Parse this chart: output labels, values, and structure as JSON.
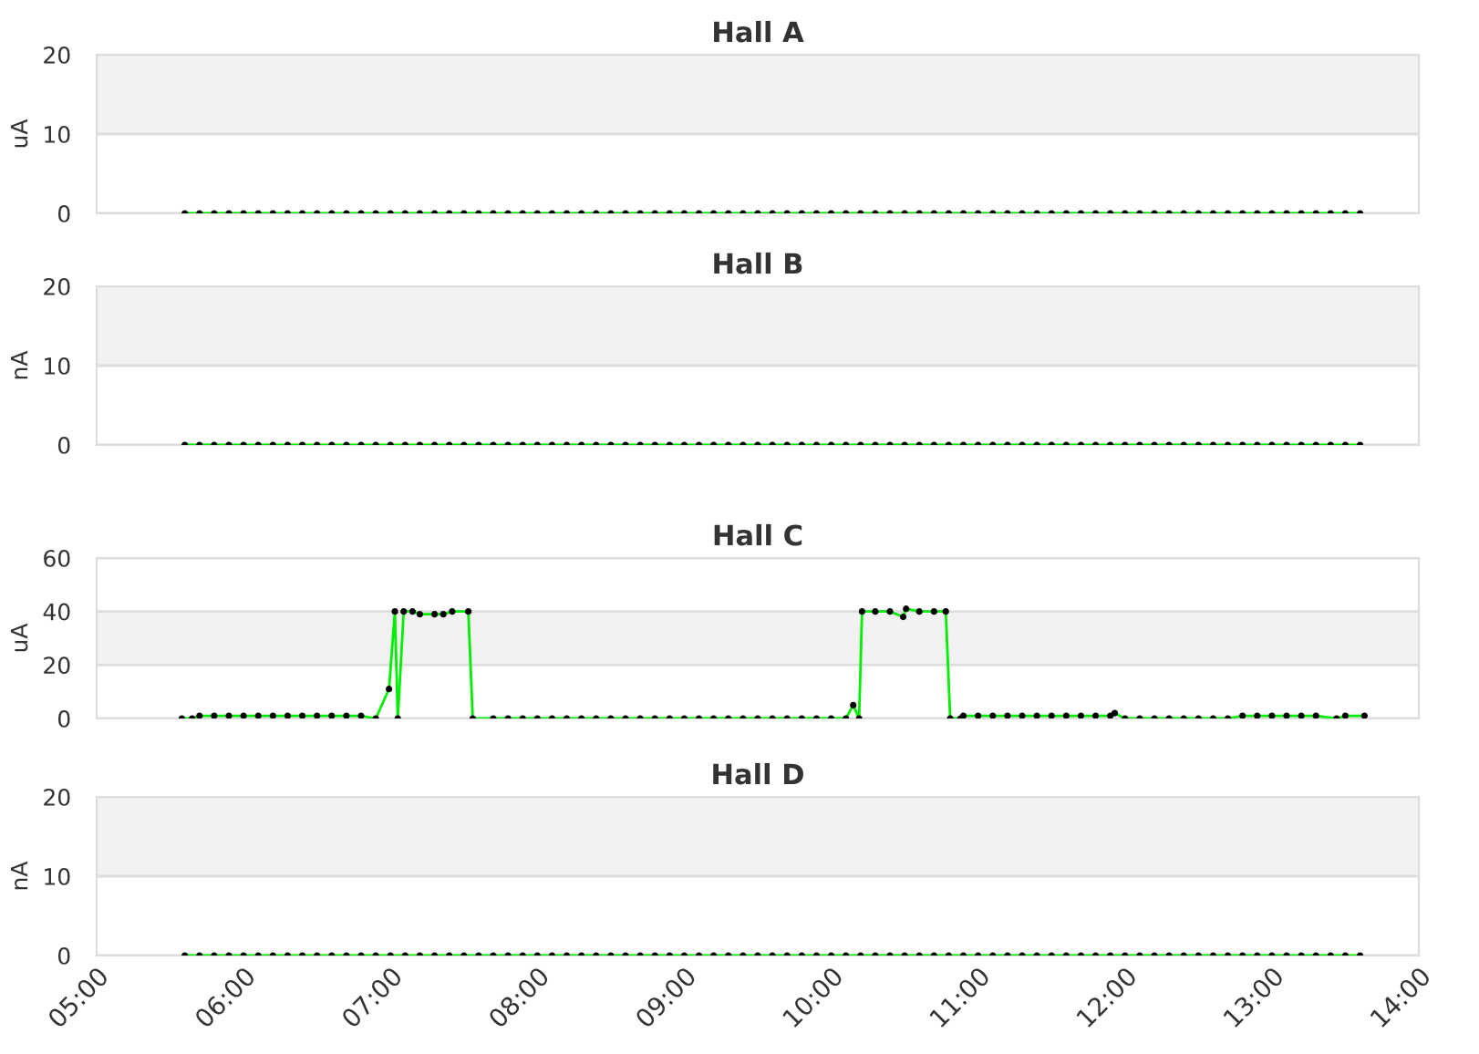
{
  "chart_data": [
    {
      "type": "line",
      "title": "Hall A",
      "ylabel": "uA",
      "xlim": [
        5,
        14
      ],
      "ylim": [
        0,
        20
      ],
      "yticks": [
        0,
        10,
        20
      ],
      "tick_labels": "y",
      "grid": "y",
      "legend": false,
      "marker": "circle",
      "line_style": "solid",
      "bands": [
        {
          "axis": "y",
          "from": 10,
          "to": 20,
          "color": "#f2f2f2"
        }
      ],
      "series": [
        {
          "color": "#00ee00",
          "x": [
            5.6,
            5.7,
            5.8,
            5.9,
            6.0,
            6.1,
            6.2,
            6.3,
            6.4,
            6.5,
            6.6,
            6.7,
            6.8,
            6.9,
            7.0,
            7.1,
            7.2,
            7.3,
            7.4,
            7.5,
            7.6,
            7.7,
            7.8,
            7.9,
            8.0,
            8.1,
            8.2,
            8.3,
            8.4,
            8.5,
            8.6,
            8.7,
            8.8,
            8.9,
            9.0,
            9.1,
            9.2,
            9.3,
            9.4,
            9.5,
            9.6,
            9.7,
            9.8,
            9.9,
            10.0,
            10.1,
            10.2,
            10.3,
            10.4,
            10.5,
            10.6,
            10.7,
            10.8,
            10.9,
            11.0,
            11.1,
            11.2,
            11.3,
            11.4,
            11.5,
            11.6,
            11.7,
            11.8,
            11.9,
            12.0,
            12.1,
            12.2,
            12.3,
            12.4,
            12.5,
            12.6,
            12.7,
            12.8,
            12.9,
            13.0,
            13.1,
            13.2,
            13.3,
            13.4,
            13.5,
            13.6
          ],
          "values": [
            0,
            0,
            0,
            0,
            0,
            0,
            0,
            0,
            0,
            0,
            0,
            0,
            0,
            0,
            0,
            0,
            0,
            0,
            0,
            0,
            0,
            0,
            0,
            0,
            0,
            0,
            0,
            0,
            0,
            0,
            0,
            0,
            0,
            0,
            0,
            0,
            0,
            0,
            0,
            0,
            0,
            0,
            0,
            0,
            0,
            0,
            0,
            0,
            0,
            0,
            0,
            0,
            0,
            0,
            0,
            0,
            0,
            0,
            0,
            0,
            0,
            0,
            0,
            0,
            0,
            0,
            0,
            0,
            0,
            0,
            0,
            0,
            0,
            0,
            0,
            0,
            0,
            0,
            0,
            0,
            0
          ]
        }
      ]
    },
    {
      "type": "line",
      "title": "Hall B",
      "ylabel": "nA",
      "xlim": [
        5,
        14
      ],
      "ylim": [
        0,
        20
      ],
      "yticks": [
        0,
        10,
        20
      ],
      "tick_labels": "y",
      "grid": "y",
      "legend": false,
      "marker": "circle",
      "line_style": "solid",
      "bands": [
        {
          "axis": "y",
          "from": 10,
          "to": 20,
          "color": "#f2f2f2"
        }
      ],
      "series": [
        {
          "color": "#00ee00",
          "x": [
            5.6,
            5.7,
            5.8,
            5.9,
            6.0,
            6.1,
            6.2,
            6.3,
            6.4,
            6.5,
            6.6,
            6.7,
            6.8,
            6.9,
            7.0,
            7.1,
            7.2,
            7.3,
            7.4,
            7.5,
            7.6,
            7.7,
            7.8,
            7.9,
            8.0,
            8.1,
            8.2,
            8.3,
            8.4,
            8.5,
            8.6,
            8.7,
            8.8,
            8.9,
            9.0,
            9.1,
            9.2,
            9.3,
            9.4,
            9.5,
            9.6,
            9.7,
            9.8,
            9.9,
            10.0,
            10.1,
            10.2,
            10.3,
            10.4,
            10.5,
            10.6,
            10.7,
            10.8,
            10.9,
            11.0,
            11.1,
            11.2,
            11.3,
            11.4,
            11.5,
            11.6,
            11.7,
            11.8,
            11.9,
            12.0,
            12.1,
            12.2,
            12.3,
            12.4,
            12.5,
            12.6,
            12.7,
            12.8,
            12.9,
            13.0,
            13.1,
            13.2,
            13.3,
            13.4,
            13.5,
            13.6
          ],
          "values": [
            0,
            0,
            0,
            0,
            0,
            0,
            0,
            0,
            0,
            0,
            0,
            0,
            0,
            0,
            0,
            0,
            0,
            0,
            0,
            0,
            0,
            0,
            0,
            0,
            0,
            0,
            0,
            0,
            0,
            0,
            0,
            0,
            0,
            0,
            0,
            0,
            0,
            0,
            0,
            0,
            0,
            0,
            0,
            0,
            0,
            0,
            0,
            0,
            0,
            0,
            0,
            0,
            0,
            0,
            0,
            0,
            0,
            0,
            0,
            0,
            0,
            0,
            0,
            0,
            0,
            0,
            0,
            0,
            0,
            0,
            0,
            0,
            0,
            0,
            0,
            0,
            0,
            0,
            0,
            0,
            0
          ]
        }
      ]
    },
    {
      "type": "line",
      "title": "Hall C",
      "ylabel": "uA",
      "xlim": [
        5,
        14
      ],
      "ylim": [
        0,
        60
      ],
      "yticks": [
        0,
        20,
        40,
        60
      ],
      "tick_labels": "y",
      "grid": "y",
      "legend": false,
      "marker": "circle",
      "line_style": "solid",
      "bands": [
        {
          "axis": "y",
          "from": 20,
          "to": 40,
          "color": "#f2f2f2"
        }
      ],
      "series": [
        {
          "color": "#00ee00",
          "x": [
            5.58,
            5.65,
            5.7,
            5.8,
            5.9,
            6.0,
            6.1,
            6.2,
            6.3,
            6.4,
            6.5,
            6.6,
            6.7,
            6.8,
            6.9,
            6.99,
            7.03,
            7.05,
            7.09,
            7.15,
            7.2,
            7.3,
            7.36,
            7.42,
            7.53,
            7.56,
            7.7,
            7.8,
            7.9,
            8.0,
            8.1,
            8.2,
            8.3,
            8.4,
            8.5,
            8.6,
            8.7,
            8.8,
            8.9,
            9.0,
            9.1,
            9.2,
            9.3,
            9.4,
            9.5,
            9.6,
            9.7,
            9.8,
            9.9,
            10.0,
            10.1,
            10.15,
            10.19,
            10.21,
            10.3,
            10.4,
            10.49,
            10.51,
            10.6,
            10.7,
            10.78,
            10.81,
            10.88,
            10.9,
            11.0,
            11.1,
            11.2,
            11.3,
            11.4,
            11.5,
            11.6,
            11.7,
            11.8,
            11.9,
            11.93,
            12.0,
            12.1,
            12.2,
            12.3,
            12.4,
            12.5,
            12.6,
            12.7,
            12.8,
            12.9,
            13.0,
            13.1,
            13.2,
            13.3,
            13.44,
            13.5,
            13.63
          ],
          "values": [
            0,
            0,
            1,
            1,
            1,
            1,
            1,
            1,
            1,
            1,
            1,
            1,
            1,
            1,
            0,
            11,
            40,
            0,
            40,
            40,
            39,
            39,
            39,
            40,
            40,
            0,
            0,
            0,
            0,
            0,
            0,
            0,
            0,
            0,
            0,
            0,
            0,
            0,
            0,
            0,
            0,
            0,
            0,
            0,
            0,
            0,
            0,
            0,
            0,
            0,
            0,
            5,
            0,
            40,
            40,
            40,
            38,
            41,
            40,
            40,
            40,
            0,
            0,
            1,
            1,
            1,
            1,
            1,
            1,
            1,
            1,
            1,
            1,
            1,
            2,
            0,
            0,
            0,
            0,
            0,
            0,
            0,
            0,
            1,
            1,
            1,
            1,
            1,
            1,
            0,
            1,
            1
          ]
        }
      ]
    },
    {
      "type": "line",
      "title": "Hall D",
      "ylabel": "nA",
      "xlim": [
        5,
        14
      ],
      "xticks": [
        {
          "value": 5,
          "label": "05:00"
        },
        {
          "value": 6,
          "label": "06:00"
        },
        {
          "value": 7,
          "label": "07:00"
        },
        {
          "value": 8,
          "label": "08:00"
        },
        {
          "value": 9,
          "label": "09:00"
        },
        {
          "value": 10,
          "label": "10:00"
        },
        {
          "value": 11,
          "label": "11:00"
        },
        {
          "value": 12,
          "label": "12:00"
        },
        {
          "value": 13,
          "label": "13:00"
        },
        {
          "value": 14,
          "label": "14:00"
        }
      ],
      "ylim": [
        0,
        20
      ],
      "yticks": [
        0,
        10,
        20
      ],
      "grid": "y",
      "legend": false,
      "marker": "circle",
      "line_style": "solid",
      "bands": [
        {
          "axis": "y",
          "from": 10,
          "to": 20,
          "color": "#f2f2f2"
        }
      ],
      "series": [
        {
          "color": "#00ee00",
          "x": [
            5.6,
            5.7,
            5.8,
            5.9,
            6.0,
            6.1,
            6.2,
            6.3,
            6.4,
            6.5,
            6.6,
            6.7,
            6.8,
            6.9,
            7.0,
            7.1,
            7.2,
            7.3,
            7.4,
            7.5,
            7.6,
            7.7,
            7.8,
            7.9,
            8.0,
            8.1,
            8.2,
            8.3,
            8.4,
            8.5,
            8.6,
            8.7,
            8.8,
            8.9,
            9.0,
            9.1,
            9.2,
            9.3,
            9.4,
            9.5,
            9.6,
            9.7,
            9.8,
            9.9,
            10.0,
            10.1,
            10.2,
            10.3,
            10.4,
            10.5,
            10.6,
            10.7,
            10.8,
            10.9,
            11.0,
            11.1,
            11.2,
            11.3,
            11.4,
            11.5,
            11.6,
            11.7,
            11.8,
            11.9,
            12.0,
            12.1,
            12.2,
            12.3,
            12.4,
            12.5,
            12.6,
            12.7,
            12.8,
            12.9,
            13.0,
            13.1,
            13.2,
            13.3,
            13.4,
            13.5,
            13.6
          ],
          "values": [
            0,
            0,
            0,
            0,
            0,
            0,
            0,
            0,
            0,
            0,
            0,
            0,
            0,
            0,
            0,
            0,
            0,
            0,
            0,
            0,
            0,
            0,
            0,
            0,
            0,
            0,
            0,
            0,
            0,
            0,
            0,
            0,
            0,
            0,
            0,
            0,
            0,
            0,
            0,
            0,
            0,
            0,
            0,
            0,
            0,
            0,
            0,
            0,
            0,
            0,
            0,
            0,
            0,
            0,
            0,
            0,
            0,
            0,
            0,
            0,
            0,
            0,
            0,
            0,
            0,
            0,
            0,
            0,
            0,
            0,
            0,
            0,
            0,
            0,
            0,
            0,
            0,
            0,
            0,
            0,
            0
          ]
        }
      ]
    }
  ]
}
